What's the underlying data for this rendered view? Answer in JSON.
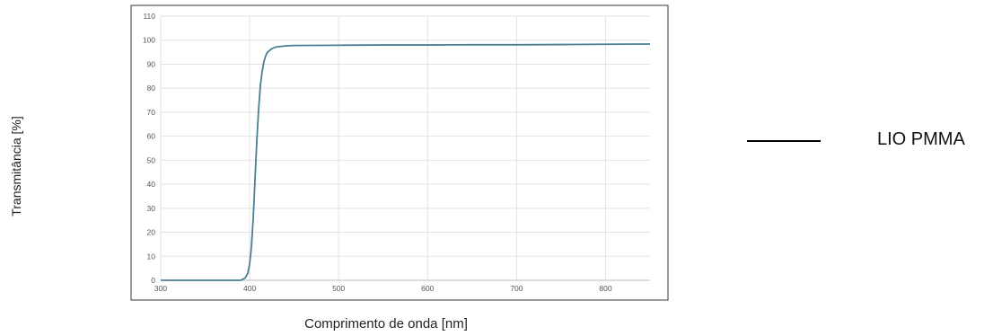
{
  "chart_data": {
    "type": "line",
    "xlabel": "Comprimento de onda [nm]",
    "ylabel": "Transmitância [%]",
    "xlim": [
      300,
      850
    ],
    "ylim": [
      0,
      110
    ],
    "x_ticks": [
      300,
      400,
      500,
      600,
      700,
      800
    ],
    "y_ticks": [
      0,
      10,
      20,
      30,
      40,
      50,
      60,
      70,
      80,
      90,
      100,
      110
    ],
    "grid": true,
    "legend_position": "right",
    "series": [
      {
        "name": "LIO PMMA",
        "color": "#4a7f92",
        "x": [
          300,
          350,
          390,
          395,
          398,
          400,
          402,
          404,
          406,
          408,
          410,
          412,
          414,
          416,
          418,
          420,
          425,
          430,
          440,
          450,
          500,
          550,
          600,
          650,
          700,
          750,
          800,
          850
        ],
        "y": [
          0,
          0,
          0,
          1,
          3,
          7,
          14,
          26,
          42,
          58,
          71,
          81,
          87,
          91,
          93.5,
          95,
          96.5,
          97.2,
          97.6,
          97.8,
          97.9,
          98.0,
          98.0,
          98.1,
          98.1,
          98.2,
          98.3,
          98.4
        ]
      }
    ]
  },
  "legend": {
    "label": "LIO PMMA",
    "line_color": "#000000"
  }
}
